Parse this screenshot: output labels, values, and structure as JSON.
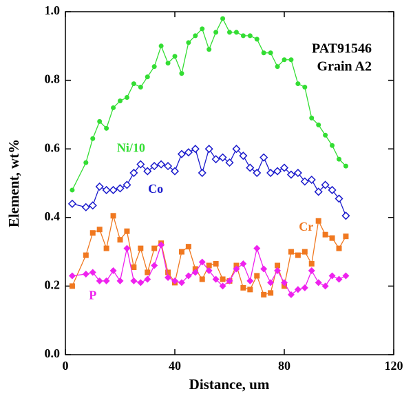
{
  "chart_data": {
    "type": "line",
    "xlabel": "Distance, um",
    "ylabel": "Element, wt%",
    "annotations": [
      "PAT91546",
      "Grain A2"
    ],
    "xlim": [
      0,
      120
    ],
    "xticks": [
      0,
      40,
      80,
      120
    ],
    "ylim": [
      0,
      1
    ],
    "yticks": [
      {
        "value": 0,
        "label": "0.0"
      },
      {
        "value": 0.2,
        "label": "0.2"
      },
      {
        "value": 0.4,
        "label": "0.4"
      },
      {
        "value": 0.6,
        "label": "0.6"
      },
      {
        "value": 0.8,
        "label": "0.8"
      },
      {
        "value": 1,
        "label": "1.0"
      }
    ],
    "x": [
      2.5,
      7.5,
      10,
      12.5,
      15,
      17.5,
      20,
      22.5,
      25,
      27.5,
      30,
      32.5,
      35,
      37.5,
      40,
      42.5,
      45,
      47.5,
      50,
      52.5,
      55,
      57.5,
      60,
      62.5,
      65,
      67.5,
      70,
      72.5,
      75,
      77.5,
      80,
      82.5,
      85,
      87.5,
      90,
      92.5,
      95,
      97.5,
      100,
      102.5
    ],
    "series": [
      {
        "name": "Ni/10",
        "color": "#33dd33",
        "marker": "circle",
        "values": [
          0.48,
          0.56,
          0.63,
          0.68,
          0.66,
          0.72,
          0.74,
          0.75,
          0.79,
          0.78,
          0.81,
          0.84,
          0.9,
          0.85,
          0.87,
          0.82,
          0.91,
          0.93,
          0.95,
          0.89,
          0.94,
          0.98,
          0.94,
          0.94,
          0.93,
          0.93,
          0.92,
          0.88,
          0.88,
          0.84,
          0.86,
          0.86,
          0.79,
          0.78,
          0.69,
          0.67,
          0.64,
          0.61,
          0.57,
          0.55
        ]
      },
      {
        "name": "Co",
        "color": "#1a1acc",
        "marker": "open-diamond",
        "values": [
          0.44,
          0.43,
          0.435,
          0.49,
          0.48,
          0.48,
          0.485,
          0.495,
          0.53,
          0.555,
          0.535,
          0.55,
          0.555,
          0.55,
          0.535,
          0.585,
          0.59,
          0.6,
          0.53,
          0.6,
          0.57,
          0.575,
          0.56,
          0.6,
          0.58,
          0.545,
          0.53,
          0.575,
          0.53,
          0.535,
          0.545,
          0.525,
          0.53,
          0.505,
          0.51,
          0.475,
          0.495,
          0.48,
          0.455,
          0.405
        ]
      },
      {
        "name": "Cr",
        "color": "#f07820",
        "marker": "square",
        "values": [
          0.2,
          0.29,
          0.355,
          0.365,
          0.31,
          0.405,
          0.335,
          0.36,
          0.255,
          0.31,
          0.24,
          0.31,
          0.325,
          0.24,
          0.21,
          0.3,
          0.315,
          0.25,
          0.22,
          0.26,
          0.265,
          0.22,
          0.215,
          0.26,
          0.195,
          0.19,
          0.23,
          0.175,
          0.18,
          0.26,
          0.2,
          0.3,
          0.29,
          0.3,
          0.265,
          0.39,
          0.35,
          0.34,
          0.31,
          0.345
        ]
      },
      {
        "name": "P",
        "color": "#ee22ee",
        "marker": "diamond",
        "values": [
          0.23,
          0.235,
          0.24,
          0.215,
          0.215,
          0.245,
          0.215,
          0.31,
          0.215,
          0.21,
          0.22,
          0.26,
          0.32,
          0.225,
          0.215,
          0.21,
          0.23,
          0.24,
          0.27,
          0.245,
          0.22,
          0.2,
          0.215,
          0.25,
          0.265,
          0.215,
          0.31,
          0.25,
          0.21,
          0.245,
          0.21,
          0.175,
          0.19,
          0.195,
          0.245,
          0.21,
          0.2,
          0.23,
          0.22,
          0.23
        ]
      }
    ]
  }
}
